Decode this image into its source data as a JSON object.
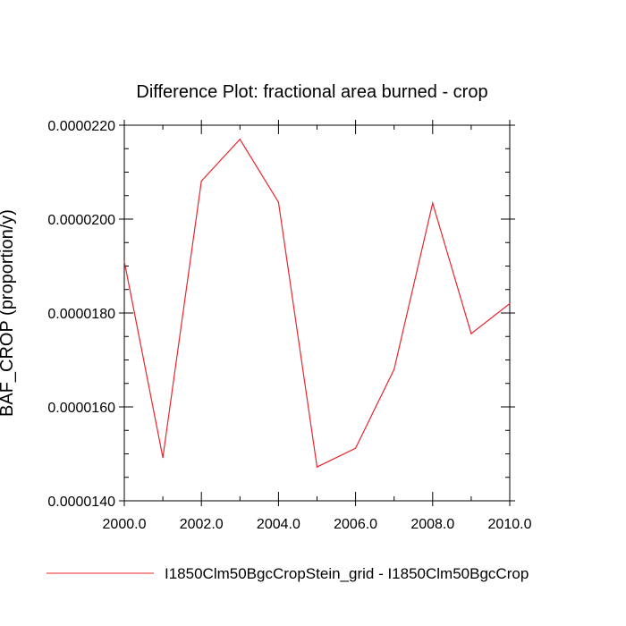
{
  "chart_data": {
    "type": "line",
    "title": "Difference Plot: fractional area burned - crop",
    "xlabel": "",
    "ylabel": "BAF_CROP  (proportion/y)",
    "xlim": [
      2000,
      2010
    ],
    "ylim": [
      1.4e-05,
      2.2e-05
    ],
    "x_ticks": [
      "2000.0",
      "2002.0",
      "2004.0",
      "2006.0",
      "2008.0",
      "2010.0"
    ],
    "y_ticks": [
      "0.0000140",
      "0.0000160",
      "0.0000180",
      "0.0000200",
      "0.0000220"
    ],
    "series": [
      {
        "name": "I1850Clm50BgcCropStein_grid - I1850Clm50BgcCrop",
        "color": "#e8262e",
        "x": [
          2000,
          2001,
          2002,
          2003,
          2004,
          2005,
          2006,
          2007,
          2008,
          2009,
          2010
        ],
        "y": [
          1.91e-05,
          1.492e-05,
          2.081e-05,
          2.17e-05,
          2.036e-05,
          1.472e-05,
          1.512e-05,
          1.68e-05,
          2.034e-05,
          1.756e-05,
          1.82e-05
        ]
      }
    ],
    "grid": false,
    "legend_position": "bottom"
  }
}
